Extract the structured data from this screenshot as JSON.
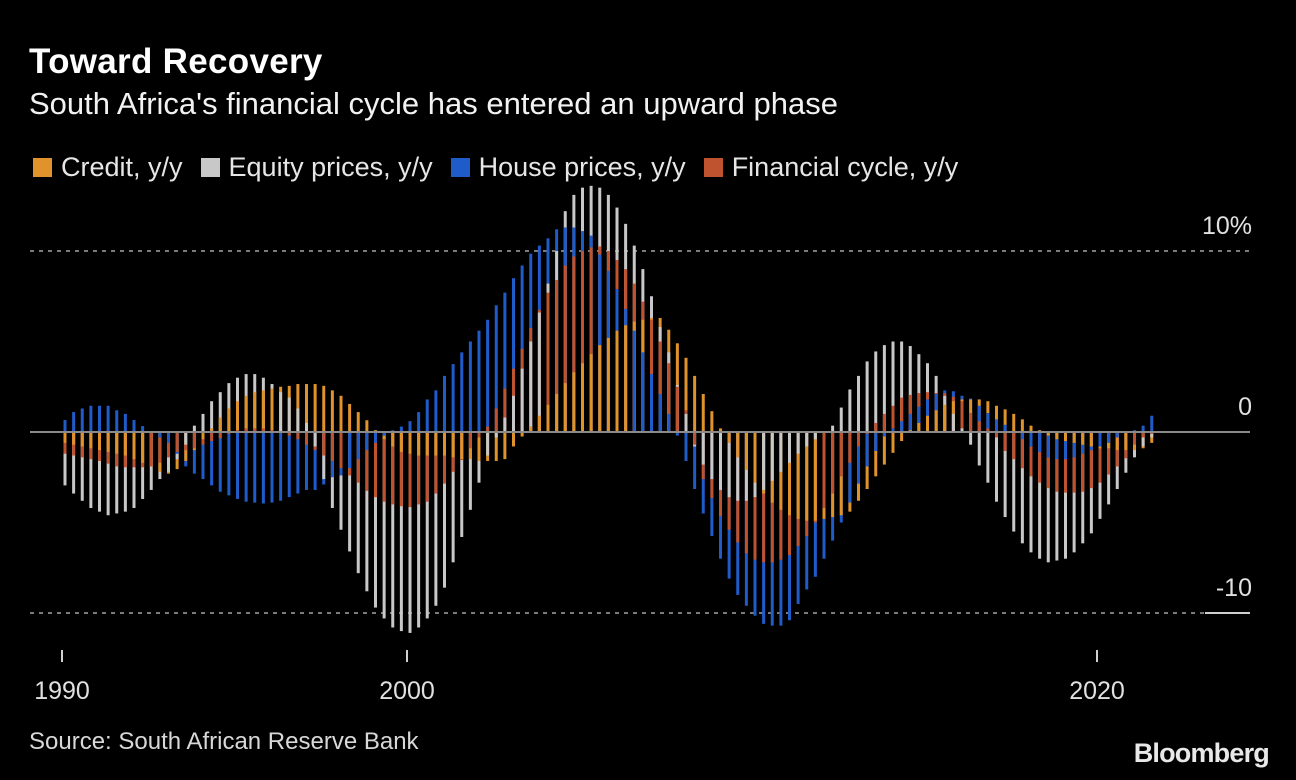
{
  "title": "Toward Recovery",
  "subtitle": "South Africa's financial cycle has entered an upward phase",
  "source": "Source: South African Reserve Bank",
  "logo": "Bloomberg",
  "chart_data": {
    "type": "bar",
    "title": "Toward Recovery",
    "subtitle": "South Africa's financial cycle has entered an upward phase",
    "frequency": "quarterly",
    "start": "1990 Q1",
    "end": "2021 Q3",
    "xlabel": "",
    "ylabel": "",
    "ylim": [
      -12,
      14
    ],
    "y_unit": "%",
    "y_ticks": [
      {
        "value": 10,
        "label": "10%"
      },
      {
        "value": 0,
        "label": "0"
      },
      {
        "value": -10,
        "label": "-10"
      }
    ],
    "x_ticks": [
      {
        "value": 1990,
        "label": "1990"
      },
      {
        "value": 2000,
        "label": "2000"
      },
      {
        "value": 2020,
        "label": "2020"
      }
    ],
    "grid": "dashed horizontal at 10 and -10",
    "legend_position": "top",
    "bars_overlaid": true,
    "series": [
      {
        "name": "Credit, y/y",
        "color": "#e0922b",
        "values": [
          -0.6,
          -0.7,
          -0.8,
          -0.9,
          -1.0,
          -1.1,
          -1.2,
          -1.3,
          -1.5,
          -1.7,
          -1.9,
          -2.2,
          -2.3,
          -2.05,
          -1.6,
          -1.0,
          -0.4,
          0.2,
          0.8,
          1.3,
          1.7,
          2.0,
          2.2,
          2.3,
          2.4,
          2.5,
          2.55,
          2.65,
          2.65,
          2.65,
          2.55,
          2.3,
          2.0,
          1.55,
          1.1,
          0.65,
          0.1,
          -0.4,
          -0.8,
          -1.1,
          -1.2,
          -1.3,
          -1.3,
          -1.3,
          -1.3,
          -1.4,
          -1.5,
          -1.5,
          -1.6,
          -1.6,
          -1.6,
          -1.5,
          -0.8,
          -0.25,
          0.3,
          0.9,
          1.5,
          2.1,
          2.7,
          3.3,
          3.8,
          4.3,
          4.8,
          5.2,
          5.6,
          5.9,
          6.1,
          6.2,
          6.3,
          6.3,
          5.65,
          4.9,
          4.1,
          3.1,
          2.1,
          1.15,
          0.2,
          -0.6,
          -1.4,
          -2.1,
          -2.8,
          -3.4,
          -3.9,
          -4.3,
          -4.6,
          -4.8,
          -4.9,
          -4.9,
          -4.8,
          -4.7,
          -4.6,
          -4.4,
          -3.8,
          -3.15,
          -2.45,
          -1.8,
          -1.15,
          -0.5,
          0.1,
          0.5,
          0.9,
          1.2,
          1.5,
          1.7,
          1.8,
          1.8,
          1.8,
          1.7,
          1.45,
          1.25,
          1.0,
          0.7,
          0.35,
          0.1,
          -0.2,
          -0.4,
          -0.5,
          -0.6,
          -0.7,
          -0.8,
          -0.9,
          -0.9,
          -1.0,
          -1.0,
          -1.0,
          -0.9,
          -0.6
        ]
      },
      {
        "name": "Equity prices, y/y",
        "color": "#c8c8c8",
        "values": [
          -2.95,
          -3.4,
          -3.8,
          -4.2,
          -4.4,
          -4.6,
          -4.5,
          -4.4,
          -4.2,
          -3.7,
          -3.2,
          -2.6,
          -2.2,
          -1.5,
          -0.7,
          0.35,
          1.0,
          1.7,
          2.2,
          2.7,
          3.0,
          3.2,
          3.2,
          3.0,
          2.65,
          2.2,
          1.9,
          1.3,
          0.5,
          -0.8,
          -2.6,
          -4.2,
          -5.4,
          -6.6,
          -7.8,
          -8.8,
          -9.7,
          -10.3,
          -10.8,
          -11.0,
          -11.1,
          -10.8,
          -10.3,
          -9.6,
          -8.6,
          -7.2,
          -5.8,
          -4.3,
          -2.8,
          -1.3,
          -0.3,
          0.8,
          2.0,
          3.5,
          5.0,
          6.6,
          8.2,
          10.0,
          12.2,
          13.1,
          13.5,
          13.6,
          13.5,
          13.1,
          12.4,
          11.5,
          10.3,
          9.0,
          7.5,
          5.8,
          4.4,
          2.6,
          1.0,
          -0.8,
          -1.8,
          -2.6,
          -3.2,
          -3.6,
          -3.8,
          -3.8,
          -3.6,
          -3.2,
          -2.7,
          -2.2,
          -1.7,
          -1.2,
          -0.8,
          -0.4,
          0.0,
          0.35,
          1.35,
          2.35,
          3.1,
          3.9,
          4.45,
          4.8,
          5.0,
          5.0,
          4.75,
          4.3,
          3.8,
          3.1,
          2.0,
          1.0,
          0.2,
          -0.7,
          -1.85,
          -2.8,
          -3.85,
          -4.7,
          -5.5,
          -6.15,
          -6.65,
          -7.0,
          -7.2,
          -7.1,
          -7.0,
          -6.65,
          -6.15,
          -5.6,
          -4.8,
          -4.0,
          -3.15,
          -2.25,
          -1.4,
          -0.8,
          -0.3
        ]
      },
      {
        "name": "House prices, y/y",
        "color": "#1f5bc9",
        "values": [
          0.66,
          1.1,
          1.3,
          1.45,
          1.45,
          1.45,
          1.2,
          1.0,
          0.66,
          0.33,
          0.0,
          -0.3,
          -0.6,
          -1.2,
          -1.9,
          -2.3,
          -2.6,
          -2.95,
          -3.3,
          -3.5,
          -3.7,
          -3.85,
          -3.9,
          -3.95,
          -3.9,
          -3.8,
          -3.6,
          -3.4,
          -3.2,
          -3.2,
          -2.9,
          -2.5,
          -2.4,
          -2.0,
          -1.5,
          -1.0,
          -0.6,
          -0.2,
          0.1,
          0.3,
          0.6,
          1.1,
          1.8,
          2.3,
          3.1,
          3.75,
          4.4,
          5.0,
          5.6,
          6.2,
          7.0,
          7.7,
          8.5,
          9.2,
          9.85,
          10.3,
          10.7,
          11.2,
          11.3,
          11.3,
          11.1,
          10.85,
          9.8,
          8.9,
          7.9,
          6.8,
          5.6,
          4.4,
          3.2,
          2.1,
          1.0,
          -0.2,
          -1.6,
          -3.15,
          -4.5,
          -5.75,
          -7.0,
          -8.1,
          -9.0,
          -9.6,
          -10.15,
          -10.6,
          -10.7,
          -10.7,
          -10.4,
          -9.5,
          -8.7,
          -8.0,
          -7.0,
          -6.0,
          -5.0,
          -3.9,
          -2.85,
          -1.9,
          -1.05,
          -0.25,
          0.2,
          0.6,
          1.0,
          1.4,
          1.8,
          2.1,
          2.3,
          2.25,
          2.0,
          1.85,
          1.45,
          1.05,
          0.7,
          0.4,
          0.0,
          -0.4,
          -0.8,
          -1.1,
          -1.4,
          -1.5,
          -1.5,
          -1.4,
          -1.2,
          -1.0,
          -0.8,
          -0.6,
          -0.3,
          0.0,
          0.1,
          0.35,
          0.9
        ]
      },
      {
        "name": "Financial cycle, y/y",
        "color": "#c0532f",
        "values": [
          -1.2,
          -1.3,
          -1.4,
          -1.5,
          -1.6,
          -1.75,
          -1.9,
          -1.95,
          -1.95,
          -1.95,
          -1.9,
          -1.7,
          -1.4,
          -1.1,
          -1.0,
          -0.9,
          -0.7,
          -0.5,
          -0.35,
          -0.1,
          0.1,
          0.2,
          0.2,
          0.2,
          0.1,
          0.0,
          -0.2,
          -0.4,
          -0.7,
          -1.0,
          -1.3,
          -1.6,
          -2.0,
          -2.4,
          -2.8,
          -3.25,
          -3.6,
          -3.85,
          -4.0,
          -4.1,
          -4.15,
          -4.0,
          -3.85,
          -3.4,
          -2.85,
          -2.2,
          -1.55,
          -0.9,
          -0.3,
          0.3,
          1.3,
          2.4,
          3.5,
          4.6,
          5.75,
          6.75,
          7.7,
          8.4,
          9.2,
          9.7,
          10.0,
          10.2,
          10.25,
          10.0,
          9.5,
          9.0,
          8.2,
          7.2,
          6.2,
          5.0,
          3.8,
          2.5,
          1.2,
          -0.7,
          -2.6,
          -3.65,
          -4.65,
          -5.4,
          -6.1,
          -6.7,
          -7.05,
          -7.2,
          -7.2,
          -7.05,
          -6.8,
          -6.3,
          -5.75,
          -5.0,
          -4.2,
          -3.4,
          -2.45,
          -1.7,
          -0.8,
          -0.1,
          0.5,
          1.0,
          1.45,
          1.9,
          2.05,
          2.15,
          2.2,
          2.15,
          2.15,
          1.95,
          1.7,
          1.05,
          0.6,
          0.2,
          -0.3,
          -1.05,
          -1.5,
          -2.0,
          -2.45,
          -2.8,
          -3.1,
          -3.3,
          -3.35,
          -3.35,
          -3.3,
          -3.1,
          -2.8,
          -2.35,
          -1.9,
          -1.45,
          -0.7,
          -0.3,
          -0.1
        ]
      }
    ]
  }
}
